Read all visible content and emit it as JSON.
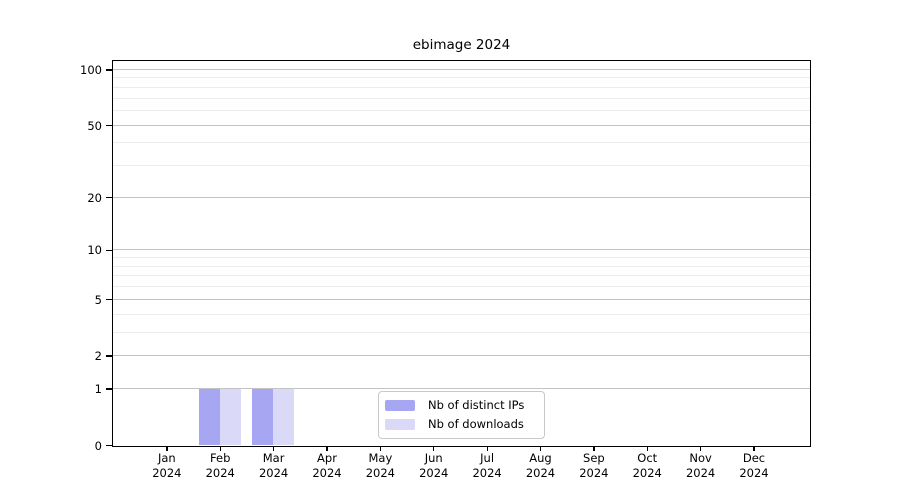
{
  "title": "ebimage 2024",
  "y_axis": {
    "tick_labels_top_to_bottom": [
      "100",
      "50",
      "20",
      "10",
      "5",
      "2",
      "1",
      "0"
    ]
  },
  "x_axis": {
    "months": [
      "Jan",
      "Feb",
      "Mar",
      "Apr",
      "May",
      "Jun",
      "Jul",
      "Aug",
      "Sep",
      "Oct",
      "Nov",
      "Dec"
    ],
    "year": "2024"
  },
  "legend": {
    "items": [
      {
        "label": "Nb of distinct IPs",
        "color": "#a6a6f2"
      },
      {
        "label": "Nb of downloads",
        "color": "#dadaf8"
      }
    ]
  },
  "colors": {
    "bar_distinct_ips": "#a6a6f2",
    "bar_downloads": "#dadaf8",
    "grid_major": "#c3c3c3",
    "grid_minor": "#ececec",
    "axis": "#000000",
    "legend_border": "#c9c9c9"
  },
  "chart_data": {
    "type": "bar",
    "title": "ebimage 2024",
    "categories": [
      "Jan 2024",
      "Feb 2024",
      "Mar 2024",
      "Apr 2024",
      "May 2024",
      "Jun 2024",
      "Jul 2024",
      "Aug 2024",
      "Sep 2024",
      "Oct 2024",
      "Nov 2024",
      "Dec 2024"
    ],
    "series": [
      {
        "name": "Nb of distinct IPs",
        "color": "#a6a6f2",
        "values": [
          0,
          1,
          1,
          0,
          0,
          0,
          0,
          0,
          0,
          0,
          0,
          0
        ]
      },
      {
        "name": "Nb of downloads",
        "color": "#dadaf8",
        "values": [
          0,
          1,
          1,
          0,
          0,
          0,
          0,
          0,
          0,
          0,
          0,
          0
        ]
      }
    ],
    "yscale": "log1p",
    "ylim": [
      0,
      111
    ],
    "yticks": [
      0,
      1,
      2,
      5,
      10,
      20,
      50,
      100
    ],
    "minor_yticks": [
      3,
      4,
      6,
      7,
      8,
      9,
      30,
      40,
      60,
      70,
      80,
      90
    ],
    "grid": true,
    "legend_position": "lower center inside plot"
  }
}
